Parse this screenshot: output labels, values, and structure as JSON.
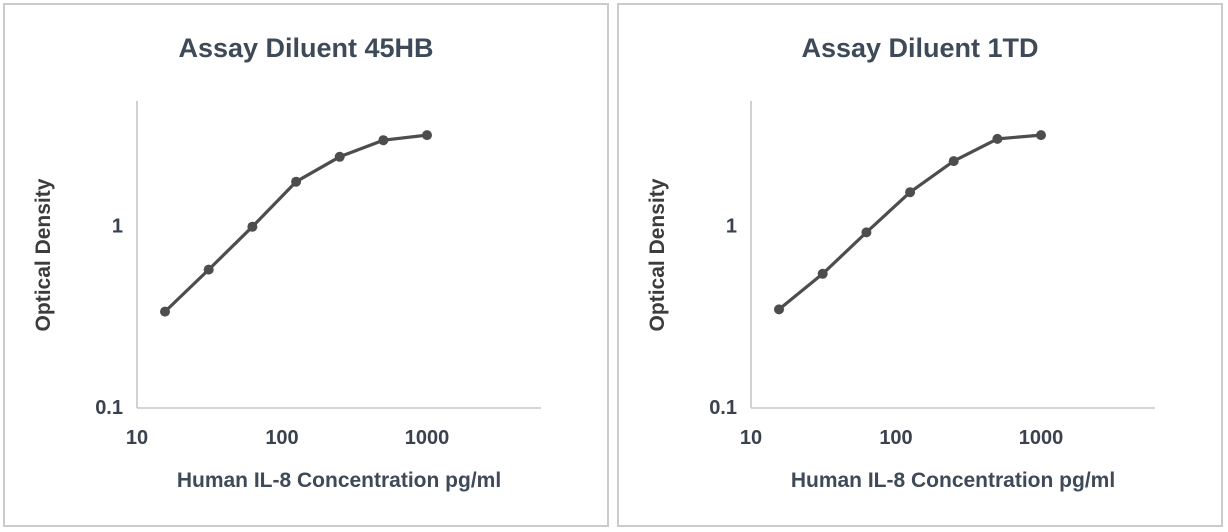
{
  "style": {
    "background": "#ffffff",
    "panel_border_color": "#cbcbcb",
    "title_color": "#3e4a58",
    "tick_label_color": "#39424e",
    "axis_title_color": "#3c3c3c",
    "series_color": "#4d4d4d",
    "axis_line_color": "#c6c6c6"
  },
  "chart_data": [
    {
      "type": "line",
      "title": "Assay Diluent 45HB",
      "xlabel": "Human IL-8 Concentration pg/ml",
      "ylabel": "Optical Density",
      "x_scale": "log",
      "y_scale": "log",
      "grid": false,
      "legend": false,
      "marker": "circle",
      "xlim": [
        10,
        6000
      ],
      "ylim": [
        0.1,
        5
      ],
      "x_ticks": [
        {
          "value": 10,
          "label": "10"
        },
        {
          "value": 100,
          "label": "100"
        },
        {
          "value": 1000,
          "label": "1000"
        }
      ],
      "y_ticks": [
        {
          "value": 1,
          "label": "1"
        },
        {
          "value": 0.1,
          "label": "0.1"
        }
      ],
      "x": [
        15.6,
        31.2,
        62.5,
        125,
        250,
        500,
        1000
      ],
      "y": [
        0.34,
        0.58,
        1.0,
        1.77,
        2.43,
        3.0,
        3.2
      ]
    },
    {
      "type": "line",
      "title": "Assay Diluent 1TD",
      "xlabel": "Human IL-8 Concentration pg/ml",
      "ylabel": "Optical Density",
      "x_scale": "log",
      "y_scale": "log",
      "grid": false,
      "legend": false,
      "marker": "circle",
      "xlim": [
        10,
        6000
      ],
      "ylim": [
        0.1,
        5
      ],
      "x_ticks": [
        {
          "value": 10,
          "label": "10"
        },
        {
          "value": 100,
          "label": "100"
        },
        {
          "value": 1000,
          "label": "1000"
        }
      ],
      "y_ticks": [
        {
          "value": 1,
          "label": "1"
        },
        {
          "value": 0.1,
          "label": "0.1"
        }
      ],
      "x": [
        15.6,
        31.2,
        62.5,
        125,
        250,
        500,
        1000
      ],
      "y": [
        0.35,
        0.55,
        0.93,
        1.55,
        2.3,
        3.05,
        3.2
      ]
    }
  ]
}
